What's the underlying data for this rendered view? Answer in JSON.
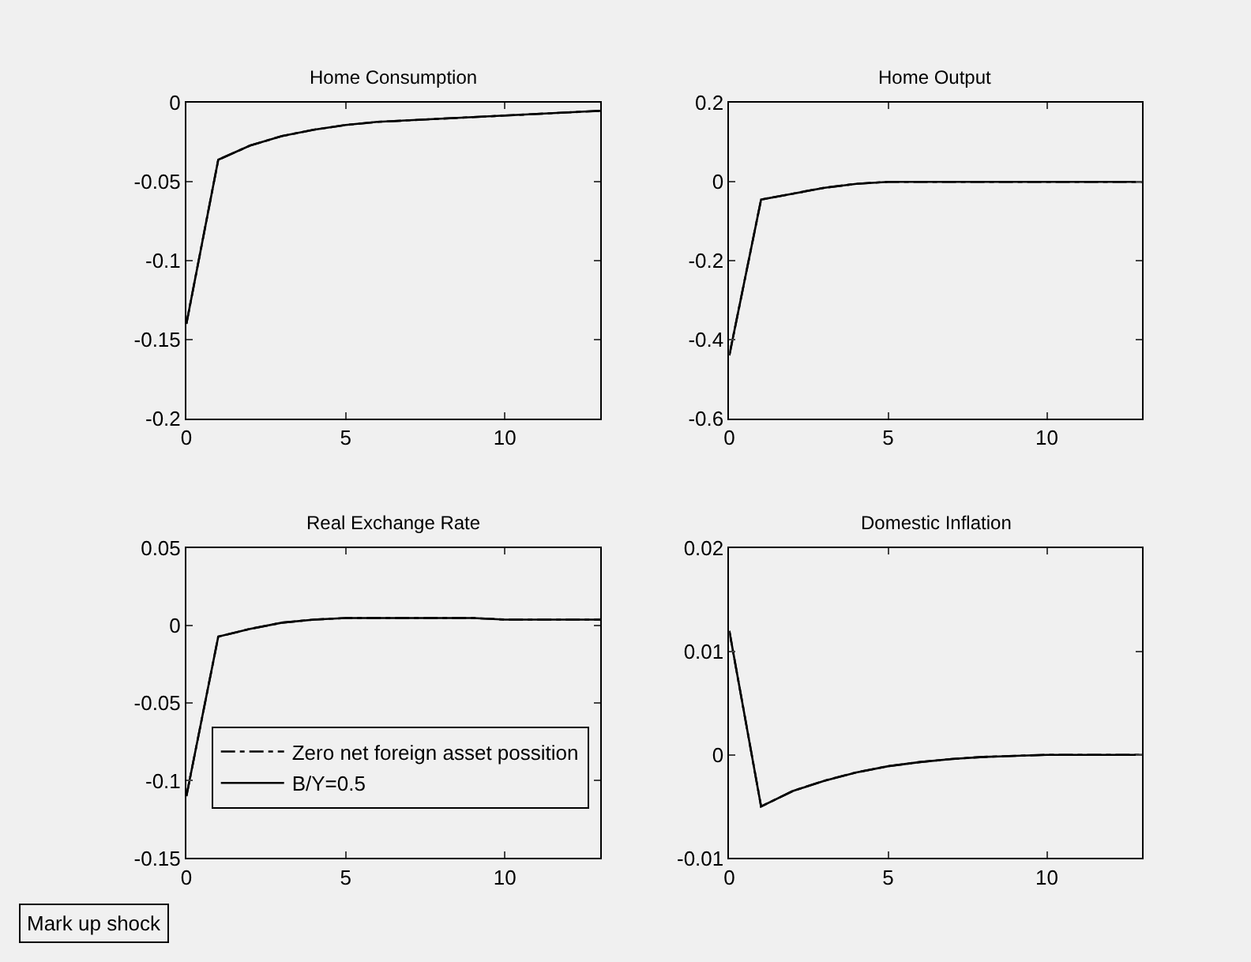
{
  "chart_data": [
    {
      "type": "line",
      "title": "Home Consumption",
      "x": [
        0,
        1,
        2,
        3,
        4,
        5,
        6,
        7,
        8,
        9,
        10,
        11,
        12,
        13
      ],
      "xlim": [
        0,
        13
      ],
      "xticks": [
        0,
        5,
        10
      ],
      "ylim": [
        -0.2,
        0
      ],
      "yticks": [
        -0.2,
        -0.15,
        -0.1,
        -0.05,
        0
      ],
      "grid": false,
      "legend": false,
      "series": [
        {
          "color": "#000000",
          "line_style": "solid",
          "values": [
            -0.14,
            -0.036,
            -0.027,
            -0.021,
            -0.017,
            -0.014,
            -0.012,
            -0.011,
            -0.01,
            -0.009,
            -0.008,
            -0.007,
            -0.006,
            -0.005
          ]
        },
        {
          "color": "#000000",
          "line_style": "dashed",
          "values": [
            -0.14,
            -0.036,
            -0.027,
            -0.021,
            -0.017,
            -0.014,
            -0.012,
            -0.011,
            -0.01,
            -0.009,
            -0.008,
            -0.007,
            -0.006,
            -0.005
          ]
        }
      ]
    },
    {
      "type": "line",
      "title": "Home Output",
      "x": [
        0,
        1,
        2,
        3,
        4,
        5,
        6,
        7,
        8,
        9,
        10,
        11,
        12,
        13
      ],
      "xlim": [
        0,
        13
      ],
      "xticks": [
        0,
        5,
        10
      ],
      "ylim": [
        -0.6,
        0.2
      ],
      "yticks": [
        -0.6,
        -0.4,
        -0.2,
        0,
        0.2
      ],
      "grid": false,
      "legend": false,
      "series": [
        {
          "color": "#000000",
          "line_style": "solid",
          "values": [
            -0.44,
            -0.045,
            -0.03,
            -0.015,
            -0.005,
            0,
            0,
            0,
            0,
            0,
            0,
            0,
            0,
            0
          ]
        },
        {
          "color": "#000000",
          "line_style": "dashed",
          "values": [
            -0.44,
            -0.045,
            -0.03,
            -0.015,
            -0.005,
            0,
            0,
            0,
            0,
            0,
            0,
            0,
            0,
            0
          ]
        }
      ]
    },
    {
      "type": "line",
      "title": "Real Exchange Rate",
      "x": [
        0,
        1,
        2,
        3,
        4,
        5,
        6,
        7,
        8,
        9,
        10,
        11,
        12,
        13
      ],
      "xlim": [
        0,
        13
      ],
      "xticks": [
        0,
        5,
        10
      ],
      "ylim": [
        -0.15,
        0.05
      ],
      "yticks": [
        -0.15,
        -0.1,
        -0.05,
        0,
        0.05
      ],
      "grid": false,
      "legend": "bottom",
      "annotations": [
        "Mark up shock"
      ],
      "series": [
        {
          "name": "Zero net foreign asset possition",
          "color": "#000000",
          "line_style": "dashed",
          "values": [
            -0.11,
            -0.007,
            -0.002,
            0.002,
            0.004,
            0.005,
            0.005,
            0.005,
            0.005,
            0.005,
            0.004,
            0.004,
            0.004,
            0.004
          ]
        },
        {
          "name": "B/Y=0.5",
          "color": "#000000",
          "line_style": "solid",
          "values": [
            -0.11,
            -0.007,
            -0.002,
            0.002,
            0.004,
            0.005,
            0.005,
            0.005,
            0.005,
            0.005,
            0.004,
            0.004,
            0.004,
            0.004
          ]
        }
      ]
    },
    {
      "type": "line",
      "title": "Domestic Inflation",
      "x": [
        0,
        1,
        2,
        3,
        4,
        5,
        6,
        7,
        8,
        9,
        10,
        11,
        12,
        13
      ],
      "xlim": [
        0,
        13
      ],
      "xticks": [
        0,
        5,
        10
      ],
      "ylim": [
        -0.01,
        0.02
      ],
      "yticks": [
        -0.01,
        0,
        0.01,
        0.02
      ],
      "grid": false,
      "legend": false,
      "series": [
        {
          "color": "#000000",
          "line_style": "solid",
          "values": [
            0.012,
            -0.005,
            -0.0035,
            -0.0025,
            -0.0017,
            -0.0011,
            -0.0007,
            -0.0004,
            -0.0002,
            -0.0001,
            0,
            0,
            0,
            0
          ]
        },
        {
          "color": "#000000",
          "line_style": "dashed",
          "values": [
            0.012,
            -0.005,
            -0.0035,
            -0.0025,
            -0.0017,
            -0.0011,
            -0.0007,
            -0.0004,
            -0.0002,
            -0.0001,
            0,
            0,
            0,
            0
          ]
        }
      ]
    }
  ]
}
